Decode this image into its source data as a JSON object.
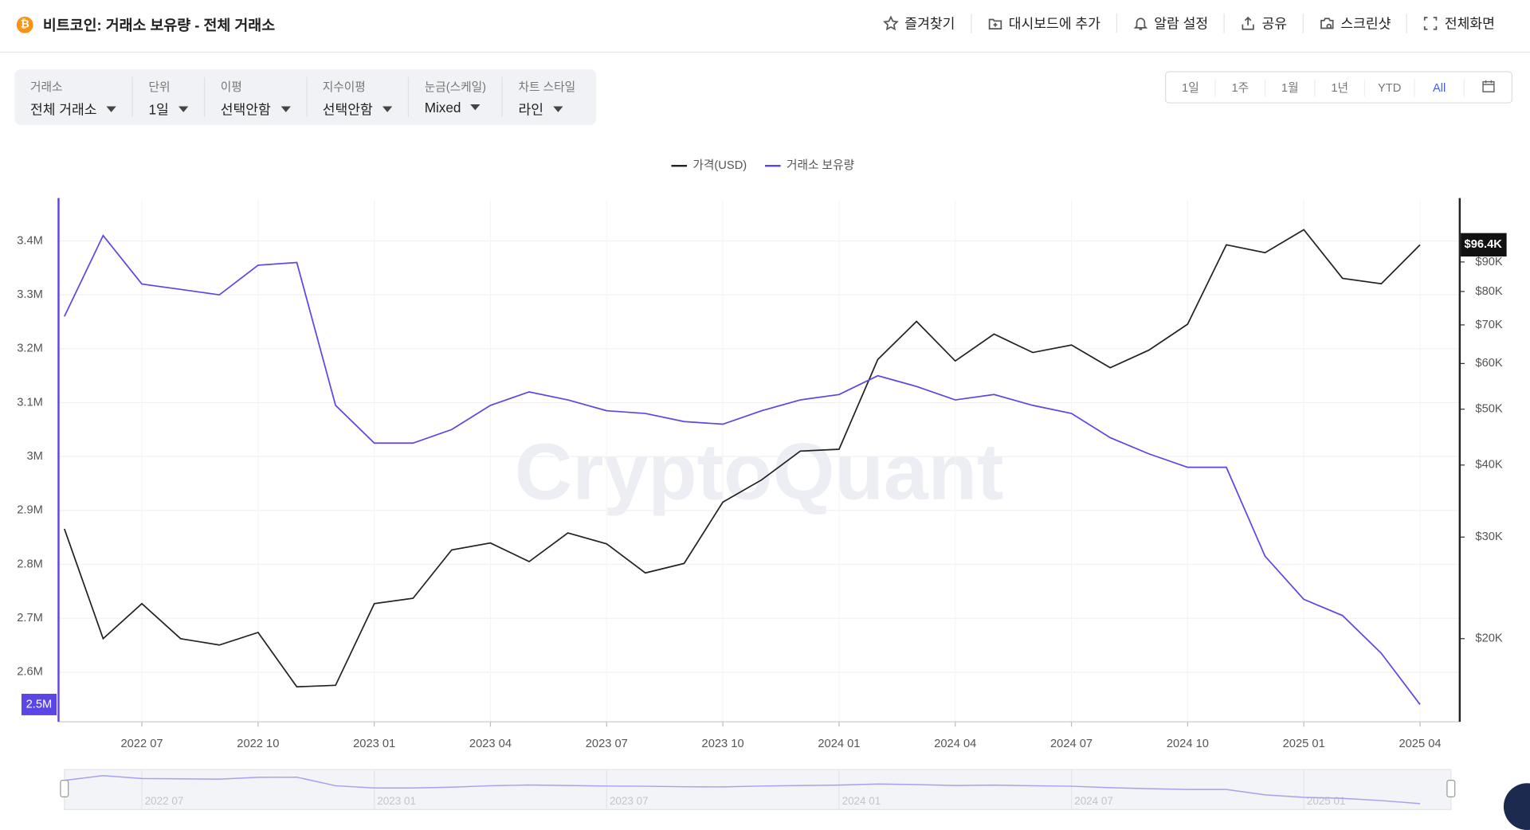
{
  "header": {
    "title": "비트코인: 거래소 보유량 - 전체 거래소",
    "actions": [
      "즐겨찾기",
      "대시보드에 추가",
      "알람 설정",
      "공유",
      "스크린샷",
      "전체화면"
    ]
  },
  "filters": [
    {
      "label": "거래소",
      "value": "전체 거래소"
    },
    {
      "label": "단위",
      "value": "1일"
    },
    {
      "label": "이평",
      "value": "선택안함"
    },
    {
      "label": "지수이평",
      "value": "선택안함"
    },
    {
      "label": "눈금(스케일)",
      "value": "Mixed"
    },
    {
      "label": "차트 스타일",
      "value": "라인"
    }
  ],
  "ranges": [
    "1일",
    "1주",
    "1월",
    "1년",
    "YTD",
    "All"
  ],
  "chart_data": {
    "type": "line",
    "watermark": "CryptoQuant",
    "grid": true,
    "legend": "top",
    "x": [
      "2022 05",
      "2022 06",
      "2022 07",
      "2022 08",
      "2022 09",
      "2022 10",
      "2022 11",
      "2022 12",
      "2023 01",
      "2023 02",
      "2023 03",
      "2023 04",
      "2023 05",
      "2023 06",
      "2023 07",
      "2023 08",
      "2023 09",
      "2023 10",
      "2023 11",
      "2023 12",
      "2024 01",
      "2024 02",
      "2024 03",
      "2024 04",
      "2024 05",
      "2024 06",
      "2024 07",
      "2024 08",
      "2024 09",
      "2024 10",
      "2024 11",
      "2024 12",
      "2025 01",
      "2025 02",
      "2025 03",
      "2025 04"
    ],
    "xlim": [
      "2022 05",
      "2025 05"
    ],
    "xticks": [
      "2022 07",
      "2022 10",
      "2023 01",
      "2023 04",
      "2023 07",
      "2023 10",
      "2024 01",
      "2024 04",
      "2024 07",
      "2024 10",
      "2025 01",
      "2025 04"
    ],
    "ylim": [
      2508000,
      3476000
    ],
    "yticks": [
      {
        "value": 2600000,
        "label": "2.6M"
      },
      {
        "value": 2700000,
        "label": "2.7M"
      },
      {
        "value": 2800000,
        "label": "2.8M"
      },
      {
        "value": 2900000,
        "label": "2.9M"
      },
      {
        "value": 3000000,
        "label": "3M"
      },
      {
        "value": 3100000,
        "label": "3.1M"
      },
      {
        "value": 3200000,
        "label": "3.2M"
      },
      {
        "value": 3300000,
        "label": "3.3M"
      },
      {
        "value": 3400000,
        "label": "3.4M"
      }
    ],
    "y2lim": [
      14350,
      115300
    ],
    "y2scale": "log",
    "y2ticks": [
      {
        "value": 20000,
        "label": "$20K"
      },
      {
        "value": 30000,
        "label": "$30K"
      },
      {
        "value": 40000,
        "label": "$40K"
      },
      {
        "value": 50000,
        "label": "$50K"
      },
      {
        "value": 60000,
        "label": "$60K"
      },
      {
        "value": 70000,
        "label": "$70K"
      },
      {
        "value": 80000,
        "label": "$80K"
      },
      {
        "value": 90000,
        "label": "$90K"
      }
    ],
    "y_marker": {
      "value": 2540000,
      "label": "2.5M"
    },
    "y2_marker": {
      "value": 96400,
      "label": "$96.4K"
    },
    "series": [
      {
        "name": "가격(USD)",
        "color": "#222222",
        "axis": "y2",
        "values": [
          31000,
          20000,
          23000,
          20000,
          19500,
          20500,
          16500,
          16600,
          23000,
          23500,
          28500,
          29300,
          27200,
          30500,
          29200,
          26000,
          27000,
          34500,
          37700,
          42300,
          42600,
          61000,
          71000,
          60600,
          67500,
          62700,
          64600,
          59000,
          63300,
          70200,
          96400,
          93400,
          102400,
          84300,
          82500,
          96400
        ]
      },
      {
        "name": "거래소 보유량",
        "color": "#5a46e6",
        "values": [
          3260000,
          3410000,
          3320000,
          3310000,
          3300000,
          3355000,
          3360000,
          3095000,
          3025000,
          3025000,
          3050000,
          3095000,
          3120000,
          3105000,
          3085000,
          3080000,
          3065000,
          3060000,
          3085000,
          3105000,
          3115000,
          3150000,
          3130000,
          3105000,
          3115000,
          3095000,
          3080000,
          3035000,
          3005000,
          2980000,
          2980000,
          2815000,
          2735000,
          2705000,
          2635000,
          2540000
        ]
      }
    ]
  }
}
